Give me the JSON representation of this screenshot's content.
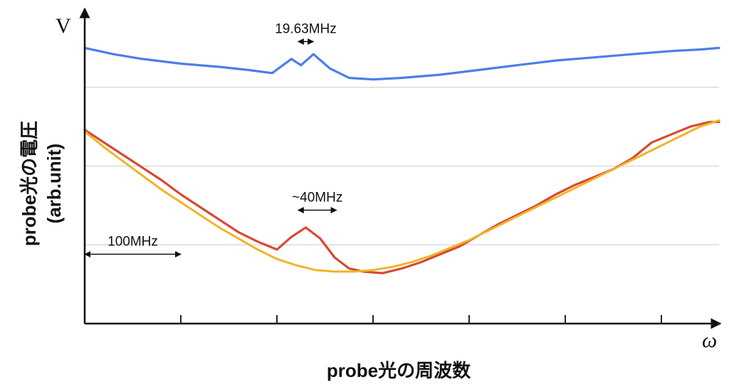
{
  "chart_data": {
    "type": "line",
    "y_axis_symbol": "V",
    "x_axis_symbol": "ω",
    "xlabel": "probe光の周波数",
    "ylabel_line1": "probe光の電圧",
    "ylabel_line2": "(arb.unit)",
    "x_unit": "MHz",
    "x_range": [
      0,
      660
    ],
    "x_ticks": [
      100,
      200,
      300,
      400,
      500,
      600
    ],
    "y_range": [
      0,
      1
    ],
    "grid": "horizontal",
    "series": [
      {
        "color": "#4c7ee8",
        "points": [
          [
            0,
            0.875
          ],
          [
            30,
            0.855
          ],
          [
            60,
            0.84
          ],
          [
            100,
            0.825
          ],
          [
            140,
            0.815
          ],
          [
            170,
            0.805
          ],
          [
            195,
            0.795
          ],
          [
            215,
            0.84
          ],
          [
            225,
            0.82
          ],
          [
            238,
            0.855
          ],
          [
            255,
            0.81
          ],
          [
            275,
            0.78
          ],
          [
            300,
            0.775
          ],
          [
            330,
            0.78
          ],
          [
            370,
            0.79
          ],
          [
            410,
            0.805
          ],
          [
            450,
            0.82
          ],
          [
            490,
            0.835
          ],
          [
            530,
            0.845
          ],
          [
            570,
            0.855
          ],
          [
            610,
            0.865
          ],
          [
            640,
            0.87
          ],
          [
            660,
            0.875
          ]
        ]
      },
      {
        "color": "#d64a34",
        "points": [
          [
            0,
            0.615
          ],
          [
            20,
            0.575
          ],
          [
            40,
            0.535
          ],
          [
            60,
            0.495
          ],
          [
            80,
            0.455
          ],
          [
            100,
            0.41
          ],
          [
            120,
            0.37
          ],
          [
            140,
            0.33
          ],
          [
            160,
            0.29
          ],
          [
            180,
            0.26
          ],
          [
            200,
            0.235
          ],
          [
            215,
            0.275
          ],
          [
            230,
            0.305
          ],
          [
            245,
            0.27
          ],
          [
            260,
            0.21
          ],
          [
            275,
            0.175
          ],
          [
            290,
            0.165
          ],
          [
            310,
            0.16
          ],
          [
            330,
            0.175
          ],
          [
            350,
            0.195
          ],
          [
            370,
            0.22
          ],
          [
            390,
            0.245
          ],
          [
            410,
            0.28
          ],
          [
            430,
            0.315
          ],
          [
            450,
            0.345
          ],
          [
            470,
            0.375
          ],
          [
            490,
            0.41
          ],
          [
            510,
            0.44
          ],
          [
            530,
            0.465
          ],
          [
            550,
            0.49
          ],
          [
            570,
            0.525
          ],
          [
            590,
            0.575
          ],
          [
            610,
            0.6
          ],
          [
            630,
            0.625
          ],
          [
            650,
            0.64
          ],
          [
            660,
            0.64
          ]
        ]
      },
      {
        "color": "#f0b429",
        "points": [
          [
            0,
            0.61
          ],
          [
            20,
            0.56
          ],
          [
            40,
            0.515
          ],
          [
            60,
            0.47
          ],
          [
            80,
            0.425
          ],
          [
            100,
            0.385
          ],
          [
            120,
            0.345
          ],
          [
            140,
            0.305
          ],
          [
            160,
            0.27
          ],
          [
            180,
            0.235
          ],
          [
            200,
            0.205
          ],
          [
            220,
            0.185
          ],
          [
            240,
            0.17
          ],
          [
            260,
            0.165
          ],
          [
            280,
            0.165
          ],
          [
            300,
            0.17
          ],
          [
            320,
            0.18
          ],
          [
            340,
            0.195
          ],
          [
            360,
            0.215
          ],
          [
            380,
            0.24
          ],
          [
            400,
            0.265
          ],
          [
            420,
            0.295
          ],
          [
            440,
            0.325
          ],
          [
            460,
            0.355
          ],
          [
            480,
            0.385
          ],
          [
            500,
            0.415
          ],
          [
            520,
            0.445
          ],
          [
            540,
            0.475
          ],
          [
            560,
            0.505
          ],
          [
            580,
            0.535
          ],
          [
            600,
            0.565
          ],
          [
            620,
            0.595
          ],
          [
            640,
            0.625
          ],
          [
            660,
            0.645
          ]
        ]
      }
    ],
    "annotations": [
      {
        "text": "19.63MHz",
        "x_from": 222,
        "x_to": 238,
        "y": 0.895
      },
      {
        "text": "~40MHz",
        "x_from": 222,
        "x_to": 262,
        "y": 0.36
      },
      {
        "text": "100MHz",
        "x_from": 0,
        "x_to": 100,
        "y": 0.22
      }
    ]
  }
}
